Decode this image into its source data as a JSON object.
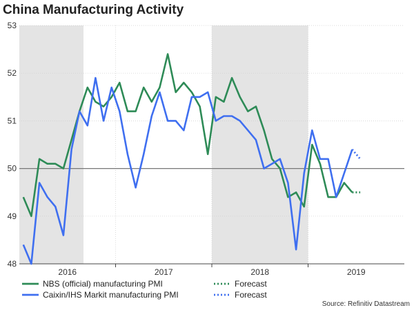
{
  "chart_data": {
    "type": "line",
    "title": "China Manufacturing Activity",
    "source": "Source: Refinitiv Datastream",
    "ylim": [
      48,
      53
    ],
    "yticks": [
      "48",
      "49",
      "50",
      "51",
      "52",
      "53"
    ],
    "reference_line": 50,
    "x_start": "2016-01",
    "x_end": "2019-12",
    "year_labels": [
      "2016",
      "2017",
      "2018",
      "2019"
    ],
    "shaded_periods": [
      [
        "2016-01",
        "2016-08"
      ],
      [
        "2018-01",
        "2018-12"
      ]
    ],
    "series": [
      {
        "name": "NBS (official) manufacturing PMI",
        "color": "#2e8b57",
        "style": "solid",
        "points": [
          [
            "2016-01",
            49.4
          ],
          [
            "2016-02",
            49.0
          ],
          [
            "2016-03",
            50.2
          ],
          [
            "2016-04",
            50.1
          ],
          [
            "2016-05",
            50.1
          ],
          [
            "2016-06",
            50.0
          ],
          [
            "2016-07",
            50.6
          ],
          [
            "2016-08",
            51.2
          ],
          [
            "2016-09",
            51.7
          ],
          [
            "2016-10",
            51.4
          ],
          [
            "2016-11",
            51.3
          ],
          [
            "2016-12",
            51.5
          ],
          [
            "2017-01",
            51.8
          ],
          [
            "2017-02",
            51.2
          ],
          [
            "2017-03",
            51.2
          ],
          [
            "2017-04",
            51.7
          ],
          [
            "2017-05",
            51.4
          ],
          [
            "2017-06",
            51.7
          ],
          [
            "2017-07",
            52.4
          ],
          [
            "2017-08",
            51.6
          ],
          [
            "2017-09",
            51.8
          ],
          [
            "2017-10",
            51.6
          ],
          [
            "2017-11",
            51.3
          ],
          [
            "2017-12",
            50.3
          ],
          [
            "2018-01",
            51.5
          ],
          [
            "2018-02",
            51.4
          ],
          [
            "2018-03",
            51.9
          ],
          [
            "2018-04",
            51.5
          ],
          [
            "2018-05",
            51.2
          ],
          [
            "2018-06",
            51.3
          ],
          [
            "2018-07",
            50.8
          ],
          [
            "2018-08",
            50.2
          ],
          [
            "2018-09",
            50.0
          ],
          [
            "2018-10",
            49.4
          ],
          [
            "2018-11",
            49.5
          ],
          [
            "2018-12",
            49.2
          ],
          [
            "2019-01",
            50.5
          ],
          [
            "2019-02",
            50.1
          ],
          [
            "2019-03",
            49.4
          ],
          [
            "2019-04",
            49.4
          ],
          [
            "2019-05",
            49.7
          ],
          [
            "2019-06",
            49.5
          ]
        ]
      },
      {
        "name": "NBS forecast",
        "legend_label": "Forecast",
        "color": "#2e8b57",
        "style": "dotted",
        "points": [
          [
            "2019-06",
            49.5
          ],
          [
            "2019-07",
            49.5
          ]
        ]
      },
      {
        "name": "Caixin/IHS Markit manufacturing PMI",
        "color": "#3f6ff0",
        "style": "solid",
        "points": [
          [
            "2016-01",
            48.4
          ],
          [
            "2016-02",
            48.0
          ],
          [
            "2016-03",
            49.7
          ],
          [
            "2016-04",
            49.4
          ],
          [
            "2016-05",
            49.2
          ],
          [
            "2016-06",
            48.6
          ],
          [
            "2016-07",
            50.4
          ],
          [
            "2016-08",
            51.2
          ],
          [
            "2016-09",
            50.9
          ],
          [
            "2016-10",
            51.9
          ],
          [
            "2016-11",
            51.0
          ],
          [
            "2016-12",
            51.7
          ],
          [
            "2017-01",
            51.2
          ],
          [
            "2017-02",
            50.3
          ],
          [
            "2017-03",
            49.6
          ],
          [
            "2017-04",
            50.3
          ],
          [
            "2017-05",
            51.1
          ],
          [
            "2017-06",
            51.6
          ],
          [
            "2017-07",
            51.0
          ],
          [
            "2017-08",
            51.0
          ],
          [
            "2017-09",
            50.8
          ],
          [
            "2017-10",
            51.5
          ],
          [
            "2017-11",
            51.5
          ],
          [
            "2017-12",
            51.6
          ],
          [
            "2018-01",
            51.0
          ],
          [
            "2018-02",
            51.1
          ],
          [
            "2018-03",
            51.1
          ],
          [
            "2018-04",
            51.0
          ],
          [
            "2018-05",
            50.8
          ],
          [
            "2018-06",
            50.6
          ],
          [
            "2018-07",
            50.0
          ],
          [
            "2018-08",
            50.1
          ],
          [
            "2018-09",
            50.2
          ],
          [
            "2018-10",
            49.7
          ],
          [
            "2018-11",
            48.3
          ],
          [
            "2018-12",
            49.9
          ],
          [
            "2019-01",
            50.8
          ],
          [
            "2019-02",
            50.2
          ],
          [
            "2019-03",
            50.2
          ],
          [
            "2019-04",
            49.4
          ],
          [
            "2019-05",
            49.9
          ],
          [
            "2019-06",
            50.4
          ]
        ]
      },
      {
        "name": "Caixin forecast",
        "legend_label": "Forecast",
        "color": "#3f6ff0",
        "style": "dotted",
        "points": [
          [
            "2019-06",
            50.4
          ],
          [
            "2019-07",
            50.2
          ]
        ]
      }
    ]
  }
}
